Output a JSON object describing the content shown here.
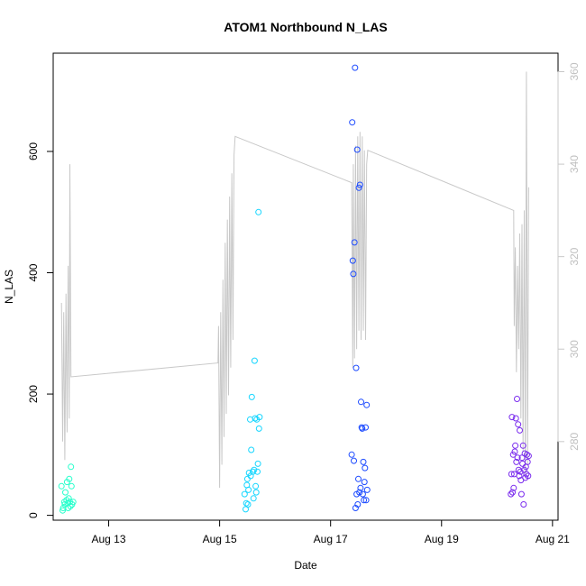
{
  "chart_data": {
    "type": "scatter",
    "title": "ATOM1 Northbound N_LAS",
    "xlabel": "Date",
    "ylabel": "N_LAS",
    "x_ticks": [
      "Aug 13",
      "Aug 15",
      "Aug 17",
      "Aug 19",
      "Aug 21"
    ],
    "x_tick_values": [
      13,
      15,
      17,
      19,
      21
    ],
    "xlim": [
      12,
      21.1
    ],
    "ylim": [
      -8,
      762
    ],
    "y_ticks": [
      0,
      200,
      400,
      600
    ],
    "y2_ticks": [
      280,
      300,
      320,
      340,
      360
    ],
    "y2lim": [
      263,
      364
    ],
    "grid": false,
    "series": [
      {
        "color": "#27ffcc",
        "points": [
          [
            12.15,
            48
          ],
          [
            12.17,
            8
          ],
          [
            12.18,
            12
          ],
          [
            12.2,
            22
          ],
          [
            12.21,
            18
          ],
          [
            12.22,
            38
          ],
          [
            12.24,
            25
          ],
          [
            12.25,
            55
          ],
          [
            12.26,
            20
          ],
          [
            12.27,
            12
          ],
          [
            12.28,
            28
          ],
          [
            12.29,
            60
          ],
          [
            12.3,
            22
          ],
          [
            12.31,
            15
          ],
          [
            12.32,
            80
          ],
          [
            12.33,
            48
          ],
          [
            12.34,
            18
          ],
          [
            12.36,
            22
          ]
        ]
      },
      {
        "color": "#16d6ff",
        "points": [
          [
            15.45,
            35
          ],
          [
            15.47,
            10
          ],
          [
            15.48,
            20
          ],
          [
            15.49,
            50
          ],
          [
            15.5,
            60
          ],
          [
            15.51,
            18
          ],
          [
            15.52,
            42
          ],
          [
            15.53,
            70
          ],
          [
            15.55,
            158
          ],
          [
            15.56,
            65
          ],
          [
            15.57,
            108
          ],
          [
            15.58,
            195
          ],
          [
            15.6,
            72
          ],
          [
            15.61,
            28
          ],
          [
            15.62,
            75
          ],
          [
            15.63,
            255
          ],
          [
            15.64,
            160
          ],
          [
            15.65,
            48
          ],
          [
            15.66,
            38
          ],
          [
            15.67,
            158
          ],
          [
            15.68,
            72
          ],
          [
            15.69,
            85
          ],
          [
            15.7,
            500
          ],
          [
            15.71,
            143
          ],
          [
            15.72,
            162
          ]
        ]
      },
      {
        "color": "#1d4bff",
        "points": [
          [
            17.38,
            100
          ],
          [
            17.39,
            648
          ],
          [
            17.4,
            420
          ],
          [
            17.41,
            398
          ],
          [
            17.42,
            90
          ],
          [
            17.43,
            450
          ],
          [
            17.44,
            738
          ],
          [
            17.45,
            12
          ],
          [
            17.46,
            243
          ],
          [
            17.47,
            35
          ],
          [
            17.48,
            603
          ],
          [
            17.49,
            18
          ],
          [
            17.5,
            60
          ],
          [
            17.51,
            540
          ],
          [
            17.52,
            38
          ],
          [
            17.53,
            545
          ],
          [
            17.54,
            45
          ],
          [
            17.55,
            187
          ],
          [
            17.56,
            145
          ],
          [
            17.57,
            143
          ],
          [
            17.58,
            35
          ],
          [
            17.59,
            88
          ],
          [
            17.6,
            25
          ],
          [
            17.61,
            55
          ],
          [
            17.62,
            78
          ],
          [
            17.63,
            145
          ],
          [
            17.64,
            25
          ],
          [
            17.65,
            182
          ],
          [
            17.66,
            42
          ]
        ]
      },
      {
        "color": "#7a2cee",
        "points": [
          [
            20.25,
            35
          ],
          [
            20.26,
            68
          ],
          [
            20.27,
            162
          ],
          [
            20.28,
            38
          ],
          [
            20.29,
            100
          ],
          [
            20.3,
            45
          ],
          [
            20.31,
            68
          ],
          [
            20.32,
            105
          ],
          [
            20.33,
            115
          ],
          [
            20.34,
            160
          ],
          [
            20.35,
            88
          ],
          [
            20.36,
            192
          ],
          [
            20.37,
            95
          ],
          [
            20.38,
            150
          ],
          [
            20.39,
            75
          ],
          [
            20.4,
            65
          ],
          [
            20.41,
            140
          ],
          [
            20.42,
            72
          ],
          [
            20.43,
            58
          ],
          [
            20.44,
            35
          ],
          [
            20.45,
            95
          ],
          [
            20.46,
            85
          ],
          [
            20.47,
            115
          ],
          [
            20.48,
            18
          ],
          [
            20.49,
            75
          ],
          [
            20.5,
            102
          ],
          [
            20.51,
            62
          ],
          [
            20.52,
            80
          ],
          [
            20.53,
            68
          ],
          [
            20.54,
            100
          ],
          [
            20.55,
            88
          ],
          [
            20.56,
            65
          ],
          [
            20.57,
            98
          ]
        ]
      }
    ],
    "line_series": {
      "color": "#c8c8c8",
      "axis": "right",
      "points": [
        [
          12.15,
          310
        ],
        [
          12.17,
          280
        ],
        [
          12.19,
          308
        ],
        [
          12.21,
          276
        ],
        [
          12.23,
          312
        ],
        [
          12.25,
          282
        ],
        [
          12.27,
          318
        ],
        [
          12.29,
          285
        ],
        [
          12.3,
          340
        ],
        [
          12.32,
          294
        ],
        [
          14.97,
          297
        ],
        [
          14.98,
          305
        ],
        [
          15.0,
          270
        ],
        [
          15.02,
          308
        ],
        [
          15.04,
          275
        ],
        [
          15.06,
          315
        ],
        [
          15.08,
          281
        ],
        [
          15.1,
          323
        ],
        [
          15.12,
          286
        ],
        [
          15.14,
          328
        ],
        [
          15.16,
          290
        ],
        [
          15.18,
          333
        ],
        [
          15.2,
          296
        ],
        [
          15.22,
          338
        ],
        [
          15.24,
          302
        ],
        [
          15.26,
          342
        ],
        [
          15.28,
          346
        ],
        [
          17.38,
          336
        ],
        [
          17.4,
          296
        ],
        [
          17.41,
          340
        ],
        [
          17.43,
          298
        ],
        [
          17.45,
          344
        ],
        [
          17.47,
          300
        ],
        [
          17.49,
          346
        ],
        [
          17.51,
          304
        ],
        [
          17.53,
          347
        ],
        [
          17.55,
          302
        ],
        [
          17.57,
          346
        ],
        [
          17.59,
          304
        ],
        [
          17.61,
          343
        ],
        [
          17.63,
          302
        ],
        [
          17.65,
          340
        ],
        [
          17.67,
          343
        ],
        [
          20.3,
          330
        ],
        [
          20.31,
          305
        ],
        [
          20.33,
          322
        ],
        [
          20.35,
          295
        ],
        [
          20.37,
          318
        ],
        [
          20.39,
          300
        ],
        [
          20.41,
          325
        ],
        [
          20.43,
          285
        ],
        [
          20.45,
          327
        ],
        [
          20.47,
          278
        ],
        [
          20.49,
          330
        ],
        [
          20.51,
          272
        ],
        [
          20.53,
          360
        ],
        [
          20.55,
          275
        ],
        [
          20.57,
          335
        ]
      ]
    }
  }
}
